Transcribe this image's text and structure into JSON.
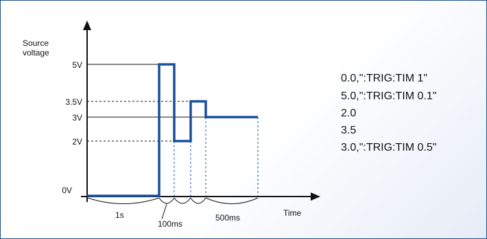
{
  "colors": {
    "border": "#1f4f87",
    "waveform": "#1a4f9c",
    "axis": "#111111"
  },
  "axes": {
    "y_label_line1": "Source",
    "y_label_line2": "voltage",
    "x_label": "Time"
  },
  "voltage_levels": [
    {
      "value": 5,
      "label": "5V"
    },
    {
      "value": 3.5,
      "label": "3.5V"
    },
    {
      "value": 3,
      "label": "3V"
    },
    {
      "value": 2,
      "label": "2V"
    },
    {
      "value": 0,
      "label": "0V"
    }
  ],
  "segments": [
    {
      "level": 0,
      "label": "1s"
    },
    {
      "level": 5,
      "label": "100ms"
    },
    {
      "level": 2,
      "label": ""
    },
    {
      "level": 3.5,
      "label": ""
    },
    {
      "level": 3,
      "label": "500ms"
    }
  ],
  "commands": [
    "0.0,\":TRIG:TIM 1\"",
    "5.0,\":TRIG:TIM 0.1\"",
    "2.0",
    "3.5",
    "3.0,\":TRIG:TIM 0.5\""
  ]
}
